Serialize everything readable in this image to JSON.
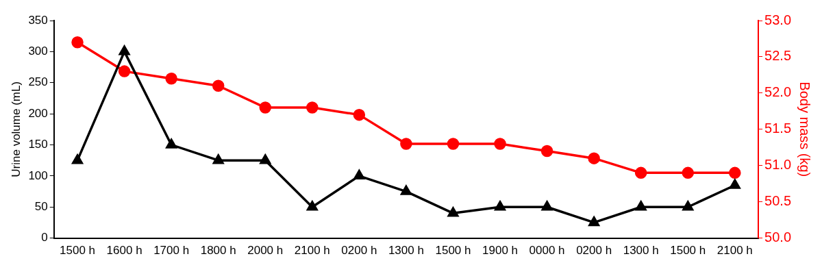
{
  "chart_data": {
    "type": "line",
    "ylabel": "Urine volume (mL)",
    "y2label": "Body mass (kg)",
    "categories": [
      "1500 h",
      "1600 h",
      "1700 h",
      "1800 h",
      "2000 h",
      "2100 h",
      "0200 h",
      "1300 h",
      "1500 h",
      "1900 h",
      "0000 h",
      "0200 h",
      "1300 h",
      "1500 h",
      "2100 h"
    ],
    "series": [
      {
        "color": "#000000",
        "marker": "triangle",
        "values": [
          125,
          300,
          150,
          125,
          125,
          50,
          100,
          75,
          40,
          50,
          50,
          25,
          50,
          50,
          85
        ]
      },
      {
        "color": "#ff0000",
        "marker": "circle",
        "axis": "y2",
        "values": [
          52.7,
          52.3,
          52.2,
          52.1,
          51.8,
          51.8,
          51.7,
          51.3,
          51.3,
          51.3,
          51.2,
          51.1,
          50.9,
          50.9,
          50.9
        ]
      }
    ],
    "ylim": [
      0,
      350
    ],
    "yticks": [
      0,
      50,
      100,
      150,
      200,
      250,
      300,
      350
    ],
    "y2lim": [
      50,
      53
    ],
    "y2ticks": [
      {
        "value": 50,
        "label": "50.0"
      },
      {
        "value": 50.5,
        "label": "50.5"
      },
      {
        "value": 51,
        "label": "51.0"
      },
      {
        "value": 51.5,
        "label": "51.5"
      },
      {
        "value": 52,
        "label": "52.0"
      },
      {
        "value": 52.5,
        "label": "52.5"
      },
      {
        "value": 53,
        "label": "53.0"
      }
    ],
    "grid": false,
    "legend": false,
    "line_style": "solid"
  }
}
